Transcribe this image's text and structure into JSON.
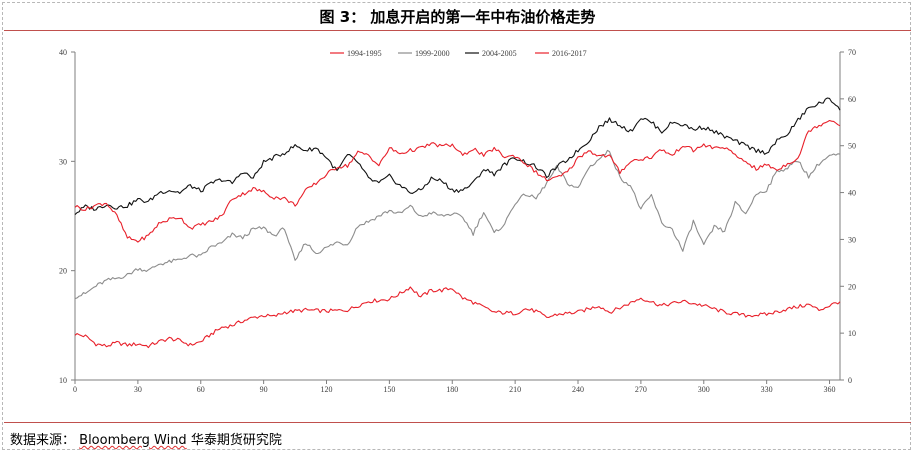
{
  "figure": {
    "title": "图 3：   加息开启的第一年中布油价格走势",
    "source_prefix": "数据来源：",
    "source_brand": "Bloomberg Wind",
    "source_suffix": "华泰期货研究院"
  },
  "chart_data": {
    "type": "line",
    "title": "",
    "xlabel": "",
    "ylabel_left": "",
    "ylabel_right": "",
    "xlim": [
      0,
      365
    ],
    "x_ticks": [
      0,
      30,
      60,
      90,
      120,
      150,
      180,
      210,
      240,
      270,
      300,
      330,
      360
    ],
    "ylim_left": [
      10,
      40
    ],
    "y_ticks_left": [
      10,
      20,
      30,
      40
    ],
    "ylim_right": [
      0,
      70
    ],
    "y_ticks_right": [
      0,
      10,
      20,
      30,
      40,
      50,
      60,
      70
    ],
    "grid": false,
    "legend_position": "top",
    "series": [
      {
        "name": "1994-1995",
        "color": "#e8202a",
        "width": 1.1,
        "axis": "left",
        "x": [
          0,
          5,
          10,
          15,
          20,
          25,
          30,
          35,
          40,
          45,
          50,
          55,
          60,
          65,
          70,
          75,
          80,
          85,
          90,
          95,
          100,
          110,
          120,
          130,
          140,
          150,
          155,
          160,
          165,
          170,
          175,
          180,
          185,
          190,
          200,
          210,
          215,
          220,
          225,
          230,
          240,
          250,
          255,
          260,
          270,
          280,
          290,
          300,
          310,
          320,
          330,
          340,
          350,
          355,
          360,
          365
        ],
        "values": [
          14.2,
          14.0,
          13.3,
          13.1,
          13.4,
          13.2,
          13.3,
          13.1,
          13.5,
          13.8,
          13.6,
          13.2,
          13.5,
          14.2,
          14.8,
          15.0,
          15.4,
          15.7,
          15.9,
          15.8,
          16.2,
          16.4,
          16.3,
          16.4,
          17.2,
          17.4,
          17.9,
          18.5,
          17.6,
          18.2,
          18.2,
          18.4,
          17.5,
          17.1,
          16.2,
          16.1,
          16.5,
          16.3,
          15.7,
          16.0,
          16.2,
          16.8,
          16.2,
          16.6,
          17.5,
          16.8,
          17.2,
          16.8,
          16.2,
          15.9,
          16.0,
          16.5,
          16.9,
          16.4,
          16.8,
          17.2
        ]
      },
      {
        "name": "1999-2000",
        "color": "#8c8c8c",
        "width": 1.1,
        "axis": "left",
        "x": [
          0,
          5,
          10,
          15,
          20,
          25,
          30,
          35,
          40,
          45,
          50,
          55,
          60,
          65,
          70,
          75,
          80,
          85,
          90,
          95,
          100,
          105,
          110,
          115,
          120,
          125,
          130,
          135,
          140,
          150,
          155,
          160,
          165,
          170,
          175,
          180,
          185,
          190,
          195,
          200,
          205,
          210,
          215,
          220,
          225,
          230,
          235,
          240,
          245,
          250,
          255,
          260,
          265,
          270,
          275,
          280,
          285,
          290,
          295,
          300,
          305,
          310,
          315,
          320,
          325,
          330,
          335,
          340,
          345,
          350,
          355,
          360,
          365
        ],
        "values": [
          17.6,
          17.9,
          18.6,
          19.1,
          19.3,
          19.6,
          20.2,
          20.0,
          20.6,
          20.8,
          21.0,
          21.4,
          21.3,
          22.2,
          22.5,
          23.3,
          23.0,
          23.8,
          23.9,
          23.2,
          23.9,
          20.8,
          22.6,
          21.6,
          22.1,
          22.6,
          22.4,
          24.1,
          24.5,
          25.5,
          25.2,
          25.9,
          24.9,
          25.3,
          25.0,
          25.2,
          24.9,
          23.4,
          25.4,
          23.4,
          24.3,
          26.2,
          27.0,
          26.6,
          28.0,
          29.5,
          28.0,
          27.5,
          29.4,
          30.2,
          31.0,
          28.5,
          27.8,
          25.6,
          26.9,
          24.3,
          23.8,
          21.8,
          24.5,
          22.3,
          24.0,
          23.6,
          26.2,
          25.2,
          27.0,
          27.4,
          29.1,
          29.4,
          30.1,
          28.6,
          29.8,
          30.5,
          30.6
        ]
      },
      {
        "name": "2004-2005",
        "color": "#111111",
        "width": 1.1,
        "axis": "right",
        "x": [
          0,
          5,
          10,
          15,
          20,
          25,
          30,
          35,
          40,
          45,
          50,
          55,
          60,
          65,
          70,
          75,
          80,
          85,
          90,
          95,
          100,
          105,
          110,
          115,
          120,
          125,
          130,
          135,
          140,
          145,
          150,
          155,
          160,
          165,
          170,
          175,
          180,
          185,
          190,
          195,
          200,
          205,
          210,
          215,
          220,
          225,
          230,
          235,
          240,
          245,
          250,
          255,
          260,
          265,
          270,
          275,
          280,
          285,
          290,
          295,
          300,
          305,
          310,
          315,
          320,
          325,
          330,
          335,
          340,
          345,
          350,
          355,
          360,
          365
        ],
        "values": [
          35.5,
          37.0,
          36.5,
          37.5,
          36.8,
          37.2,
          38.5,
          38.0,
          40.0,
          40.5,
          40.0,
          41.5,
          40.3,
          42.0,
          42.8,
          42.0,
          44.5,
          43.0,
          46.5,
          47.5,
          48.5,
          50.0,
          49.0,
          49.5,
          47.5,
          44.5,
          48.0,
          46.5,
          43.0,
          42.0,
          43.5,
          41.5,
          40.0,
          40.5,
          43.0,
          42.5,
          40.5,
          40.5,
          42.0,
          45.0,
          44.0,
          46.0,
          47.5,
          46.5,
          45.5,
          43.5,
          45.5,
          47.0,
          49.0,
          51.0,
          54.0,
          55.5,
          54.5,
          53.0,
          56.0,
          55.0,
          53.0,
          55.0,
          54.5,
          53.5,
          54.0,
          53.0,
          52.0,
          51.0,
          50.0,
          49.0,
          48.5,
          51.0,
          52.5,
          55.5,
          58.0,
          59.0,
          60.0,
          58.0
        ]
      },
      {
        "name": "2016-2017",
        "color": "#e8202a",
        "width": 1.1,
        "axis": "left",
        "x": [
          0,
          5,
          10,
          15,
          20,
          25,
          30,
          35,
          40,
          45,
          50,
          55,
          60,
          65,
          70,
          75,
          80,
          85,
          90,
          95,
          100,
          105,
          110,
          115,
          120,
          125,
          130,
          135,
          140,
          145,
          150,
          155,
          160,
          165,
          170,
          175,
          180,
          185,
          190,
          195,
          200,
          205,
          210,
          215,
          220,
          225,
          230,
          235,
          240,
          245,
          250,
          255,
          260,
          265,
          270,
          275,
          280,
          285,
          290,
          295,
          300,
          305,
          310,
          315,
          320,
          325,
          330,
          335,
          340,
          345,
          350,
          355,
          360,
          365
        ],
        "values": [
          25.9,
          25.6,
          26.0,
          26.2,
          25.0,
          23.0,
          22.7,
          23.2,
          24.3,
          24.7,
          24.9,
          23.9,
          24.2,
          24.5,
          25.0,
          26.6,
          27.0,
          27.5,
          27.2,
          26.7,
          26.6,
          26.0,
          27.3,
          28.0,
          28.8,
          29.5,
          29.6,
          30.8,
          30.6,
          29.6,
          31.2,
          30.7,
          31.0,
          31.2,
          31.6,
          31.4,
          31.5,
          30.5,
          31.2,
          30.5,
          31.2,
          30.4,
          30.5,
          29.8,
          29.0,
          28.3,
          28.5,
          29.0,
          30.3,
          31.0,
          30.5,
          30.5,
          29.0,
          30.0,
          30.2,
          30.4,
          31.1,
          30.5,
          31.5,
          31.0,
          31.5,
          31.2,
          31.3,
          30.5,
          30.0,
          29.3,
          29.7,
          29.2,
          29.8,
          30.3,
          32.8,
          33.3,
          33.8,
          33.4
        ]
      }
    ]
  }
}
